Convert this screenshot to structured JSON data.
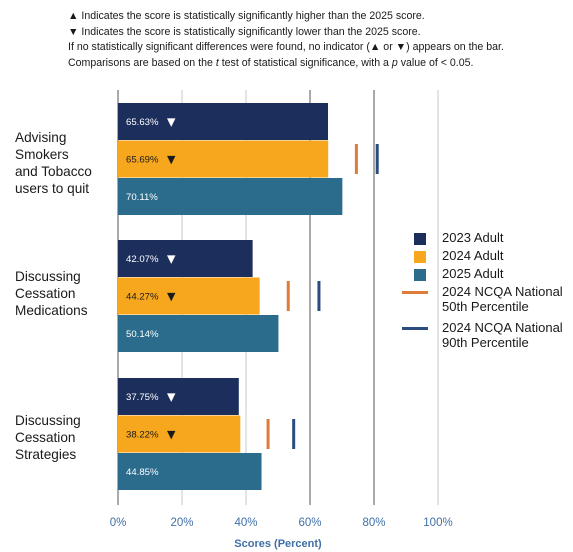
{
  "notes": {
    "line1": "▲ Indicates the score is statistically significantly higher than the 2025 score.",
    "line2": "▼ Indicates the score is statistically significantly lower than the 2025 score.",
    "line3": "If no statistically significant differences were found, no indicator (▲ or ▼) appears on the bar.",
    "line4_pre": "Comparisons are based on the ",
    "line4_t": "t",
    "line4_mid": " test of statistical significance, with a ",
    "line4_p": "p",
    "line4_post": " value of < 0.05."
  },
  "colors": {
    "adult_2023": "#1c2e5b",
    "adult_2024": "#f6a71d",
    "adult_2025": "#2b6c8c",
    "ncqa_50th": "#e07b39",
    "ncqa_90th": "#2b4c7e",
    "axis_text": "#3f6fa6"
  },
  "chart_data": {
    "type": "bar",
    "orientation": "horizontal",
    "groups": [
      {
        "label_lines": [
          "Advising",
          "Smokers",
          "and Tobacco",
          "users to quit"
        ]
      },
      {
        "label_lines": [
          "Discussing",
          "Cessation",
          "Medications"
        ]
      },
      {
        "label_lines": [
          "Discussing",
          "Cessation",
          "Strategies"
        ]
      }
    ],
    "series": [
      {
        "name": "2023 Adult",
        "values": [
          65.63,
          42.07,
          37.75
        ],
        "labels": [
          "65.63%",
          "42.07%",
          "37.75%"
        ],
        "indicators": [
          "▼",
          "▼",
          "▼"
        ]
      },
      {
        "name": "2024 Adult",
        "values": [
          65.69,
          44.27,
          38.22
        ],
        "labels": [
          "65.69%",
          "44.27%",
          "38.22%"
        ],
        "indicators": [
          "▼",
          "▼",
          "▼"
        ]
      },
      {
        "name": "2025 Adult",
        "values": [
          70.11,
          50.14,
          44.85
        ],
        "labels": [
          "70.11%",
          "50.14%",
          "44.85%"
        ],
        "indicators": [
          "",
          "",
          ""
        ]
      }
    ],
    "reference_lines": [
      {
        "name": "2024 NCQA National 50th Percentile",
        "name_lines": [
          "2024 NCQA National",
          "50th Percentile"
        ],
        "values": [
          74.5,
          53.2,
          46.9
        ]
      },
      {
        "name": "2024 NCQA National 90th Percentile",
        "name_lines": [
          "2024 NCQA National",
          "90th Percentile"
        ],
        "values": [
          81.0,
          62.8,
          54.9
        ]
      }
    ],
    "xlim": [
      0,
      100
    ],
    "xticks": [
      "0%",
      "20%",
      "40%",
      "60%",
      "80%",
      "100%"
    ],
    "gridlines_at": [
      60,
      80
    ],
    "xlabel": "Scores (Percent)",
    "legend_position": "right"
  }
}
